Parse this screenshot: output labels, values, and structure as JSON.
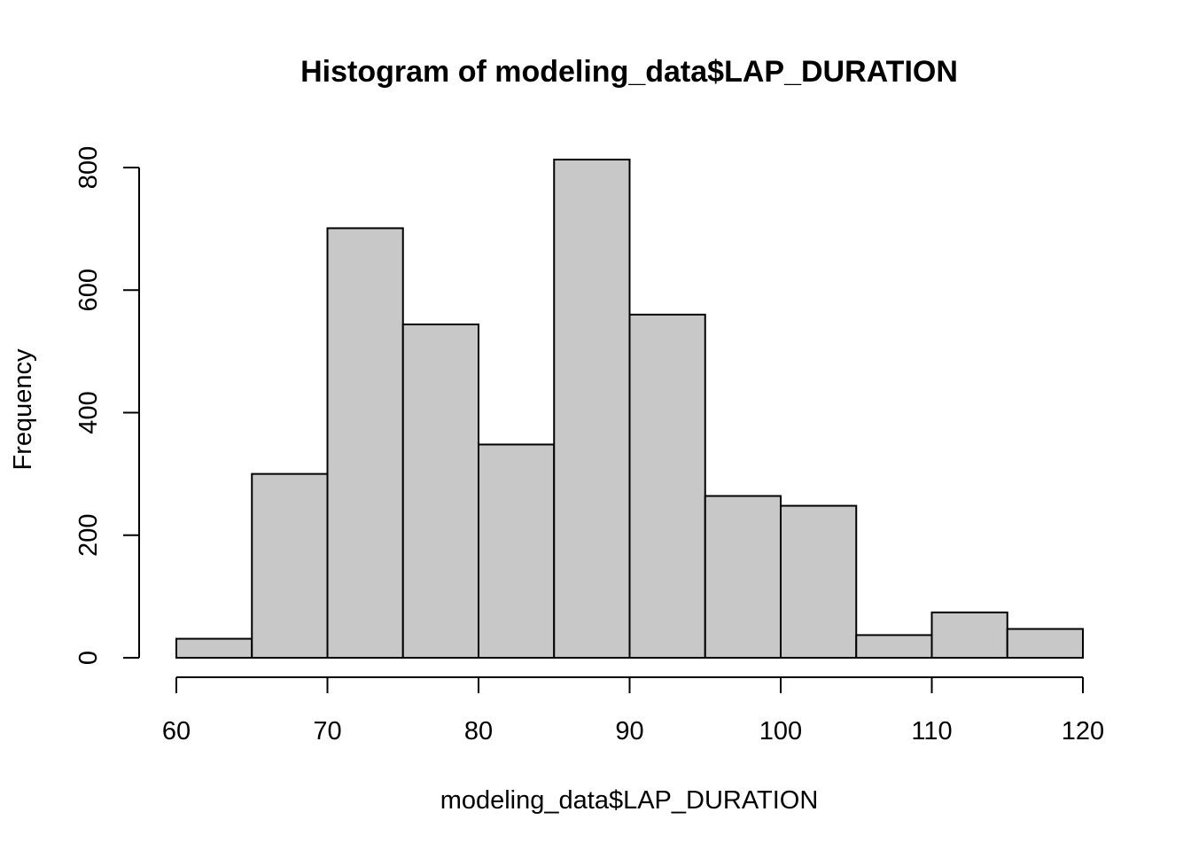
{
  "chart_data": {
    "type": "bar",
    "title": "Histogram of modeling_data$LAP_DURATION",
    "xlabel": "modeling_data$LAP_DURATION",
    "ylabel": "Frequency",
    "x_ticks": [
      60,
      70,
      80,
      90,
      100,
      110,
      120
    ],
    "y_ticks": [
      0,
      200,
      400,
      600,
      800
    ],
    "xlim": [
      60,
      120
    ],
    "ylim": [
      0,
      800
    ],
    "bin_edges": [
      60,
      65,
      70,
      75,
      80,
      85,
      90,
      95,
      100,
      105,
      110,
      115,
      120
    ],
    "values": [
      31,
      300,
      701,
      544,
      348,
      813,
      560,
      264,
      248,
      37,
      74,
      47
    ],
    "bar_color": "#c8c8c8",
    "grid": false,
    "legend": "none"
  }
}
